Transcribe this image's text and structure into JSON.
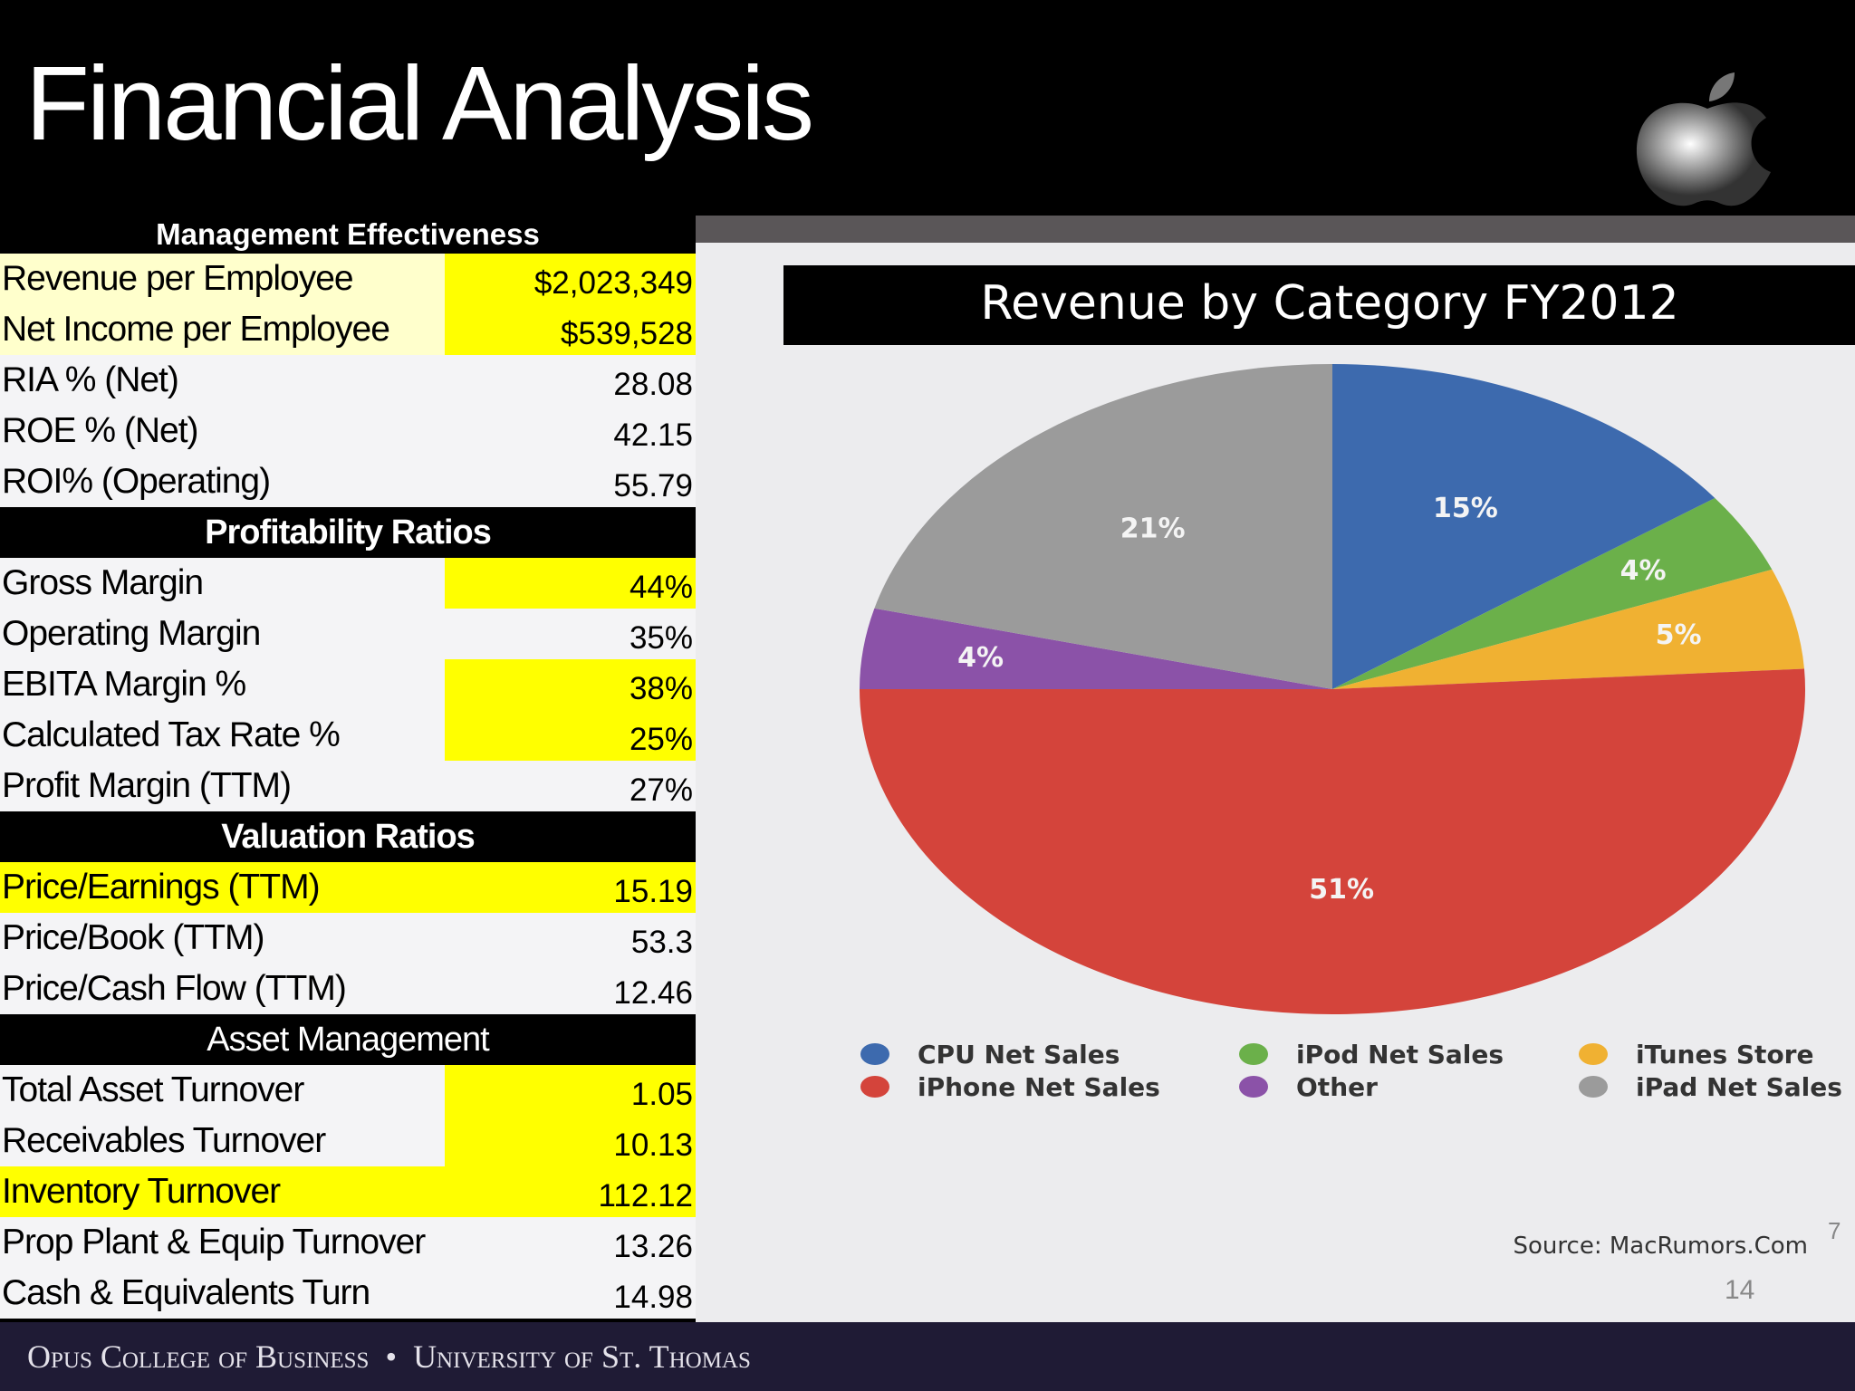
{
  "header": {
    "title": "Financial Analysis"
  },
  "table": {
    "sections": [
      {
        "title": "Management Effectiveness",
        "rows": [
          [
            "Revenue per Employee",
            "$2,023,349"
          ],
          [
            "Net Income per Employee",
            "$539,528"
          ],
          [
            "RIA % (Net)",
            "28.08"
          ],
          [
            "ROE % (Net)",
            "42.15"
          ],
          [
            "ROI% (Operating)",
            "55.79"
          ]
        ]
      },
      {
        "title": "Profitability Ratios",
        "rows": [
          [
            "Gross Margin",
            "44%"
          ],
          [
            "Operating Margin",
            "35%"
          ],
          [
            "EBITA Margin %",
            "38%"
          ],
          [
            "Calculated Tax Rate %",
            "25%"
          ],
          [
            "Profit Margin (TTM)",
            "27%"
          ]
        ]
      },
      {
        "title": "Valuation Ratios",
        "rows": [
          [
            "Price/Earnings (TTM)",
            "15.19"
          ],
          [
            "Price/Book (TTM)",
            "53.3"
          ],
          [
            "Price/Cash Flow (TTM)",
            "12.46"
          ]
        ]
      },
      {
        "title": "Asset Management",
        "rows": [
          [
            "Total Asset Turnover",
            "1.05"
          ],
          [
            "Receivables Turnover",
            "10.13"
          ],
          [
            "Inventory Turnover",
            "112.12"
          ],
          [
            "Prop Plant & Equip Turnover",
            "13.26"
          ],
          [
            "Cash & Equivalents Turn",
            "14.98"
          ]
        ]
      }
    ]
  },
  "chart_data": {
    "type": "pie",
    "title": "Revenue by Category FY2012",
    "categories": [
      "CPU Net Sales",
      "iPod Net Sales",
      "iTunes Store",
      "iPhone Net Sales",
      "Other",
      "iPad Net Sales"
    ],
    "values": [
      15,
      4,
      5,
      51,
      4,
      21
    ],
    "value_labels": [
      "15%",
      "4%",
      "5%",
      "51%",
      "4%",
      "21%"
    ],
    "colors": [
      "#3d6aae",
      "#6bb04a",
      "#f0b132",
      "#d4443b",
      "#8b52a8",
      "#9b9b9b"
    ]
  },
  "source": "Source: MacRumors.Com",
  "corner_mark": "7",
  "page_number": "14",
  "footer": {
    "left": "Opus College of Business",
    "separator": "•",
    "right": "University of St. Thomas"
  }
}
